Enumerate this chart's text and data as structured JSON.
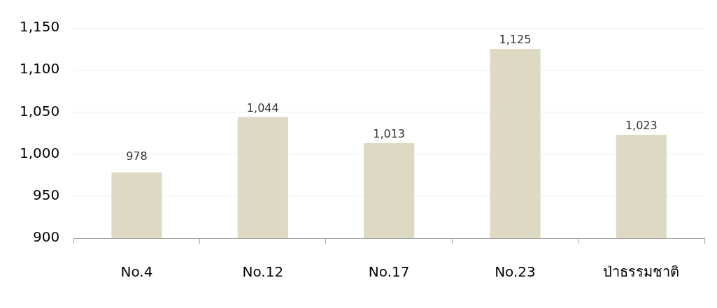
{
  "chart_data": {
    "type": "bar",
    "categories": [
      "No.4",
      "No.12",
      "No.17",
      "No.23",
      "ป่าธรรมชาติ"
    ],
    "values": [
      978,
      1044,
      1013,
      1125,
      1023
    ],
    "color": "#ddd9c3",
    "ylim": [
      900,
      1150
    ],
    "yticks": [
      900,
      950,
      {
        "value": 1000,
        "label": "1,000"
      },
      {
        "value": 1050,
        "label": "1,050"
      },
      {
        "value": 1100,
        "label": "1,100"
      },
      {
        "value": 1150,
        "label": "1,150"
      }
    ],
    "grid": "y",
    "legend": false,
    "value_labels": [
      "978",
      "1,044",
      "1,013",
      "1,125",
      "1,023"
    ]
  }
}
